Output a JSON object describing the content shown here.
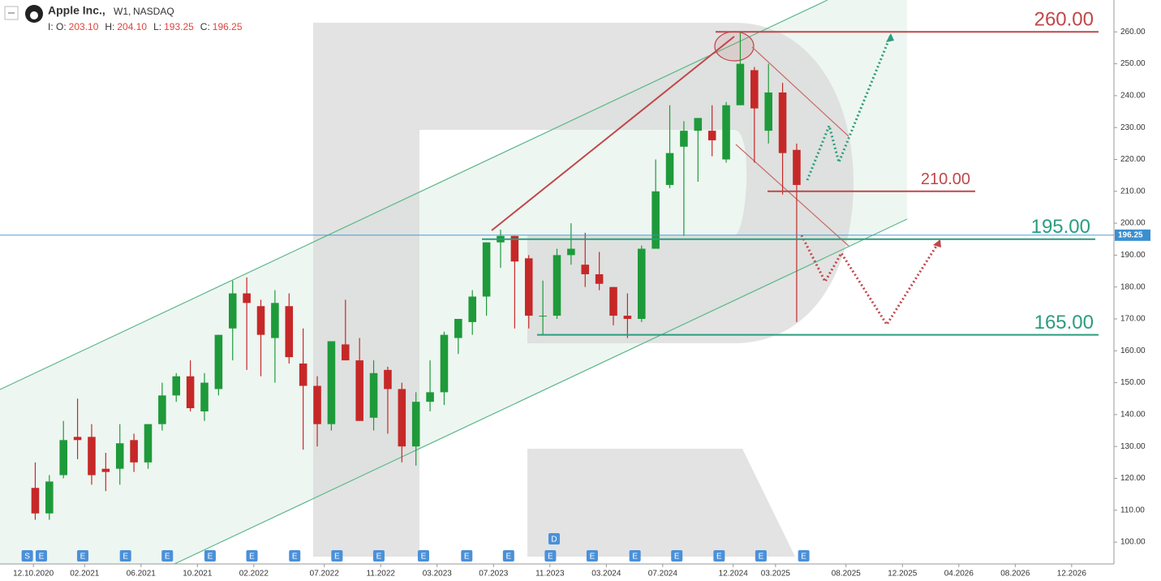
{
  "chart_data": {
    "type": "candlestick",
    "symbol": "Apple Inc.,",
    "interval": "W1,",
    "exchange": "NASDAQ",
    "ohlc_prefix": "I:",
    "ohlc": [
      {
        "name": "O:",
        "value": 203.1,
        "label": "203.10"
      },
      {
        "name": "H:",
        "value": 204.1,
        "label": "204.10"
      },
      {
        "name": "L:",
        "value": 193.25,
        "label": "193.25"
      },
      {
        "name": "C:",
        "value": 196.25,
        "label": "196.25"
      }
    ],
    "x": [
      "2020-10",
      "2020-11",
      "2020-12",
      "2021-01",
      "2021-02",
      "2021-03",
      "2021-04",
      "2021-05",
      "2021-06",
      "2021-07",
      "2021-08",
      "2021-09",
      "2021-10",
      "2021-11",
      "2021-12",
      "2022-01",
      "2022-02",
      "2022-03",
      "2022-04",
      "2022-05",
      "2022-06",
      "2022-07",
      "2022-08",
      "2022-09",
      "2022-10",
      "2022-11",
      "2022-12",
      "2023-01",
      "2023-02",
      "2023-03",
      "2023-04",
      "2023-05",
      "2023-06",
      "2023-07",
      "2023-08",
      "2023-09",
      "2023-10",
      "2023-11",
      "2023-12",
      "2024-01",
      "2024-02",
      "2024-03",
      "2024-04",
      "2024-05",
      "2024-06",
      "2024-07",
      "2024-08",
      "2024-09",
      "2024-10",
      "2024-11",
      "2024-12",
      "2025-01",
      "2025-02",
      "2025-03",
      "2025-04"
    ],
    "open": [
      117,
      109,
      121,
      133,
      133,
      123,
      123,
      132,
      125,
      137,
      146,
      152,
      141,
      148,
      167,
      178,
      174,
      164,
      174,
      156,
      149,
      137,
      162,
      157,
      139,
      154,
      148,
      130,
      144,
      147,
      164,
      169,
      177,
      194,
      196,
      189,
      171,
      171,
      190,
      187,
      184,
      180,
      171,
      170,
      192,
      212,
      224,
      229,
      229,
      220,
      237,
      248,
      229,
      241,
      223
    ],
    "high": [
      125,
      121,
      138,
      145,
      137,
      128,
      137,
      134,
      137,
      150,
      153,
      157,
      153,
      165,
      182,
      183,
      176,
      179,
      178,
      167,
      152,
      163,
      176,
      164,
      157,
      155,
      150,
      147,
      157,
      166,
      170,
      179,
      194,
      198,
      196,
      190,
      182,
      192,
      200,
      197,
      191,
      180,
      178,
      193,
      220,
      237,
      232,
      233,
      237,
      238,
      260,
      249,
      250,
      244,
      225
    ],
    "low": [
      107,
      107,
      120,
      126,
      118,
      116,
      118,
      122,
      123,
      135,
      144,
      141,
      138,
      146,
      157,
      154,
      152,
      150,
      156,
      129,
      130,
      135,
      157,
      138,
      135,
      134,
      125,
      124,
      141,
      143,
      159,
      165,
      171,
      186,
      167,
      167,
      165,
      170,
      187,
      180,
      179,
      168,
      164,
      169,
      192,
      211,
      196,
      213,
      221,
      219,
      237,
      219,
      225,
      209,
      169
    ],
    "close": [
      109,
      119,
      132,
      132,
      121,
      122,
      131,
      125,
      137,
      146,
      152,
      142,
      150,
      165,
      178,
      175,
      165,
      175,
      158,
      149,
      137,
      163,
      157,
      138,
      153,
      148,
      130,
      144,
      147,
      165,
      170,
      177,
      194,
      196,
      188,
      171,
      171,
      190,
      192,
      184,
      181,
      171,
      170,
      192,
      210,
      222,
      229,
      233,
      226,
      237,
      250,
      236,
      241,
      222,
      212
    ],
    "up_color": "#1e9a3a",
    "down_color": "#c62828",
    "xlim": [
      "2020-08",
      "2027-03"
    ],
    "xticks": [
      {
        "value": "2020-10-12",
        "label": "12.10.2020"
      },
      {
        "value": "2021-02",
        "label": "02.2021"
      },
      {
        "value": "2021-06",
        "label": "06.2021"
      },
      {
        "value": "2021-10",
        "label": "10.2021"
      },
      {
        "value": "2022-02",
        "label": "02.2022"
      },
      {
        "value": "2022-07",
        "label": "07.2022"
      },
      {
        "value": "2022-11",
        "label": "11.2022"
      },
      {
        "value": "2023-03",
        "label": "03.2023"
      },
      {
        "value": "2023-07",
        "label": "07.2023"
      },
      {
        "value": "2023-11",
        "label": "11.2023"
      },
      {
        "value": "2024-03",
        "label": "03.2024"
      },
      {
        "value": "2024-07",
        "label": "07.2024"
      },
      {
        "value": "2024-12",
        "label": "12.2024"
      },
      {
        "value": "2025-03",
        "label": "03.2025"
      },
      {
        "value": "2025-08",
        "label": "08.2025"
      },
      {
        "value": "2025-12",
        "label": "12.2025"
      },
      {
        "value": "2026-04",
        "label": "04.2026"
      },
      {
        "value": "2026-08",
        "label": "08.2026"
      },
      {
        "value": "2026-12",
        "label": "12.2026"
      }
    ],
    "ylim": [
      93.15,
      270
    ],
    "yticks": [
      {
        "value": 100,
        "label": "100.00"
      },
      {
        "value": 110,
        "label": "110.00"
      },
      {
        "value": 120,
        "label": "120.00"
      },
      {
        "value": 130,
        "label": "130.00"
      },
      {
        "value": 140,
        "label": "140.00"
      },
      {
        "value": 150,
        "label": "150.00"
      },
      {
        "value": 160,
        "label": "160.00"
      },
      {
        "value": 170,
        "label": "170.00"
      },
      {
        "value": 180,
        "label": "180.00"
      },
      {
        "value": 190,
        "label": "190.00"
      },
      {
        "value": 200,
        "label": "200.00"
      },
      {
        "value": 210,
        "label": "210.00"
      },
      {
        "value": 220,
        "label": "220.00"
      },
      {
        "value": 230,
        "label": "230.00"
      },
      {
        "value": 240,
        "label": "240.00"
      },
      {
        "value": 250,
        "label": "250.00"
      },
      {
        "value": 260,
        "label": "260.00"
      }
    ],
    "last_price": 196.25,
    "levels": [
      {
        "value": 260,
        "label": "260.00",
        "color": "#c0474b"
      },
      {
        "value": 210,
        "label": "210.00",
        "color": "#c0474b"
      },
      {
        "value": 195,
        "label": "195.00",
        "color": "#2a9d7f"
      },
      {
        "value": 165,
        "label": "165.00",
        "color": "#2a9d7f"
      }
    ],
    "events": [
      {
        "x": "2020-09-29",
        "label": "S"
      },
      {
        "x": "2020-10-29",
        "label": "E"
      },
      {
        "x": "2021-01-27",
        "label": "E"
      },
      {
        "x": "2021-04-28",
        "label": "E"
      },
      {
        "x": "2021-07-27",
        "label": "E"
      },
      {
        "x": "2021-10-28",
        "label": "E"
      },
      {
        "x": "2022-01-27",
        "label": "E"
      },
      {
        "x": "2022-04-28",
        "label": "E"
      },
      {
        "x": "2022-07-28",
        "label": "E"
      },
      {
        "x": "2022-10-27",
        "label": "E"
      },
      {
        "x": "2023-02-02",
        "label": "E"
      },
      {
        "x": "2023-05-04",
        "label": "E"
      },
      {
        "x": "2023-08-03",
        "label": "E"
      },
      {
        "x": "2023-11-02",
        "label": "E"
      },
      {
        "x": "2023-11-10",
        "label": "D"
      },
      {
        "x": "2024-02-01",
        "label": "E"
      },
      {
        "x": "2024-05-02",
        "label": "E"
      },
      {
        "x": "2024-08-01",
        "label": "E"
      },
      {
        "x": "2024-10-31",
        "label": "E"
      },
      {
        "x": "2025-01-30",
        "label": "E"
      },
      {
        "x": "2025-05-01",
        "label": "E"
      }
    ]
  }
}
